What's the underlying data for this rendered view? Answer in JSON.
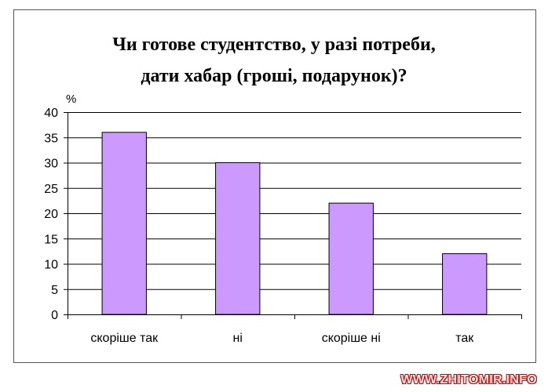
{
  "chart_data": {
    "type": "bar",
    "title_lines": [
      "Чи готове студентство, у разі потреби,",
      "дати хабар (гроші, подарунок)?"
    ],
    "unit_label": "%",
    "categories": [
      "скоріше так",
      "ні",
      "скоріше ні",
      "так"
    ],
    "values": [
      36,
      30,
      22,
      12
    ],
    "ylim": [
      0,
      40
    ],
    "yticks": [
      0,
      5,
      10,
      15,
      20,
      25,
      30,
      35,
      40
    ],
    "grid": true,
    "bar_color": "#cc99ff",
    "legend": "none"
  },
  "watermark": "WWW.ZHITOMIR.INFO"
}
